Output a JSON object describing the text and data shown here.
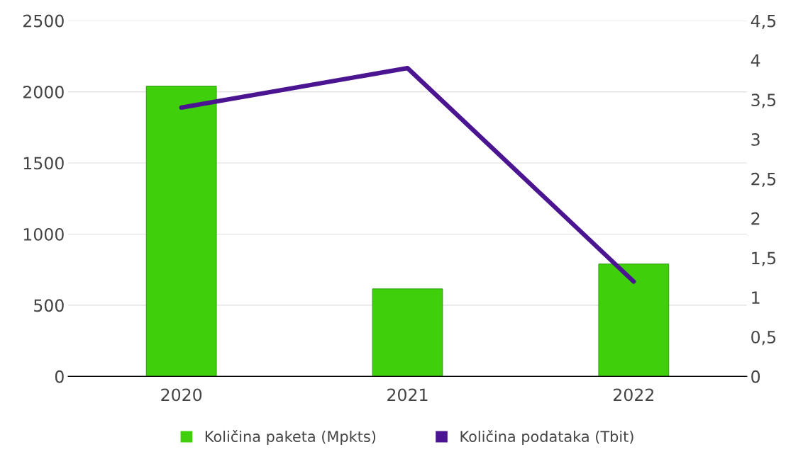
{
  "chart_data": {
    "type": "bar",
    "categories": [
      "2020",
      "2021",
      "2022"
    ],
    "series": [
      {
        "name": "Količina paketa (Mpkts)",
        "color": "#3fd00b",
        "values": [
          2040,
          615,
          790
        ]
      },
      {
        "name": "Količina podataka (Tbit)",
        "type": "line",
        "axis": "y2",
        "color": "#4b1592",
        "values": [
          3.4,
          3.9,
          1.2
        ]
      }
    ],
    "ylim": [
      0,
      2500
    ],
    "yticks": [
      0,
      500,
      1000,
      1500,
      2000,
      2500
    ],
    "y2lim": [
      0,
      4.5
    ],
    "y2ticks": [
      0,
      {
        "value": 0.5,
        "label": "0,5"
      },
      1,
      {
        "value": 1.5,
        "label": "1,5"
      },
      2,
      {
        "value": 2.5,
        "label": "2,5"
      },
      3,
      {
        "value": 3.5,
        "label": "3,5"
      },
      4,
      {
        "value": 4.5,
        "label": "4,5"
      }
    ],
    "grid": "y",
    "legend": "bottom",
    "marker": "none",
    "line_style": "solid"
  }
}
